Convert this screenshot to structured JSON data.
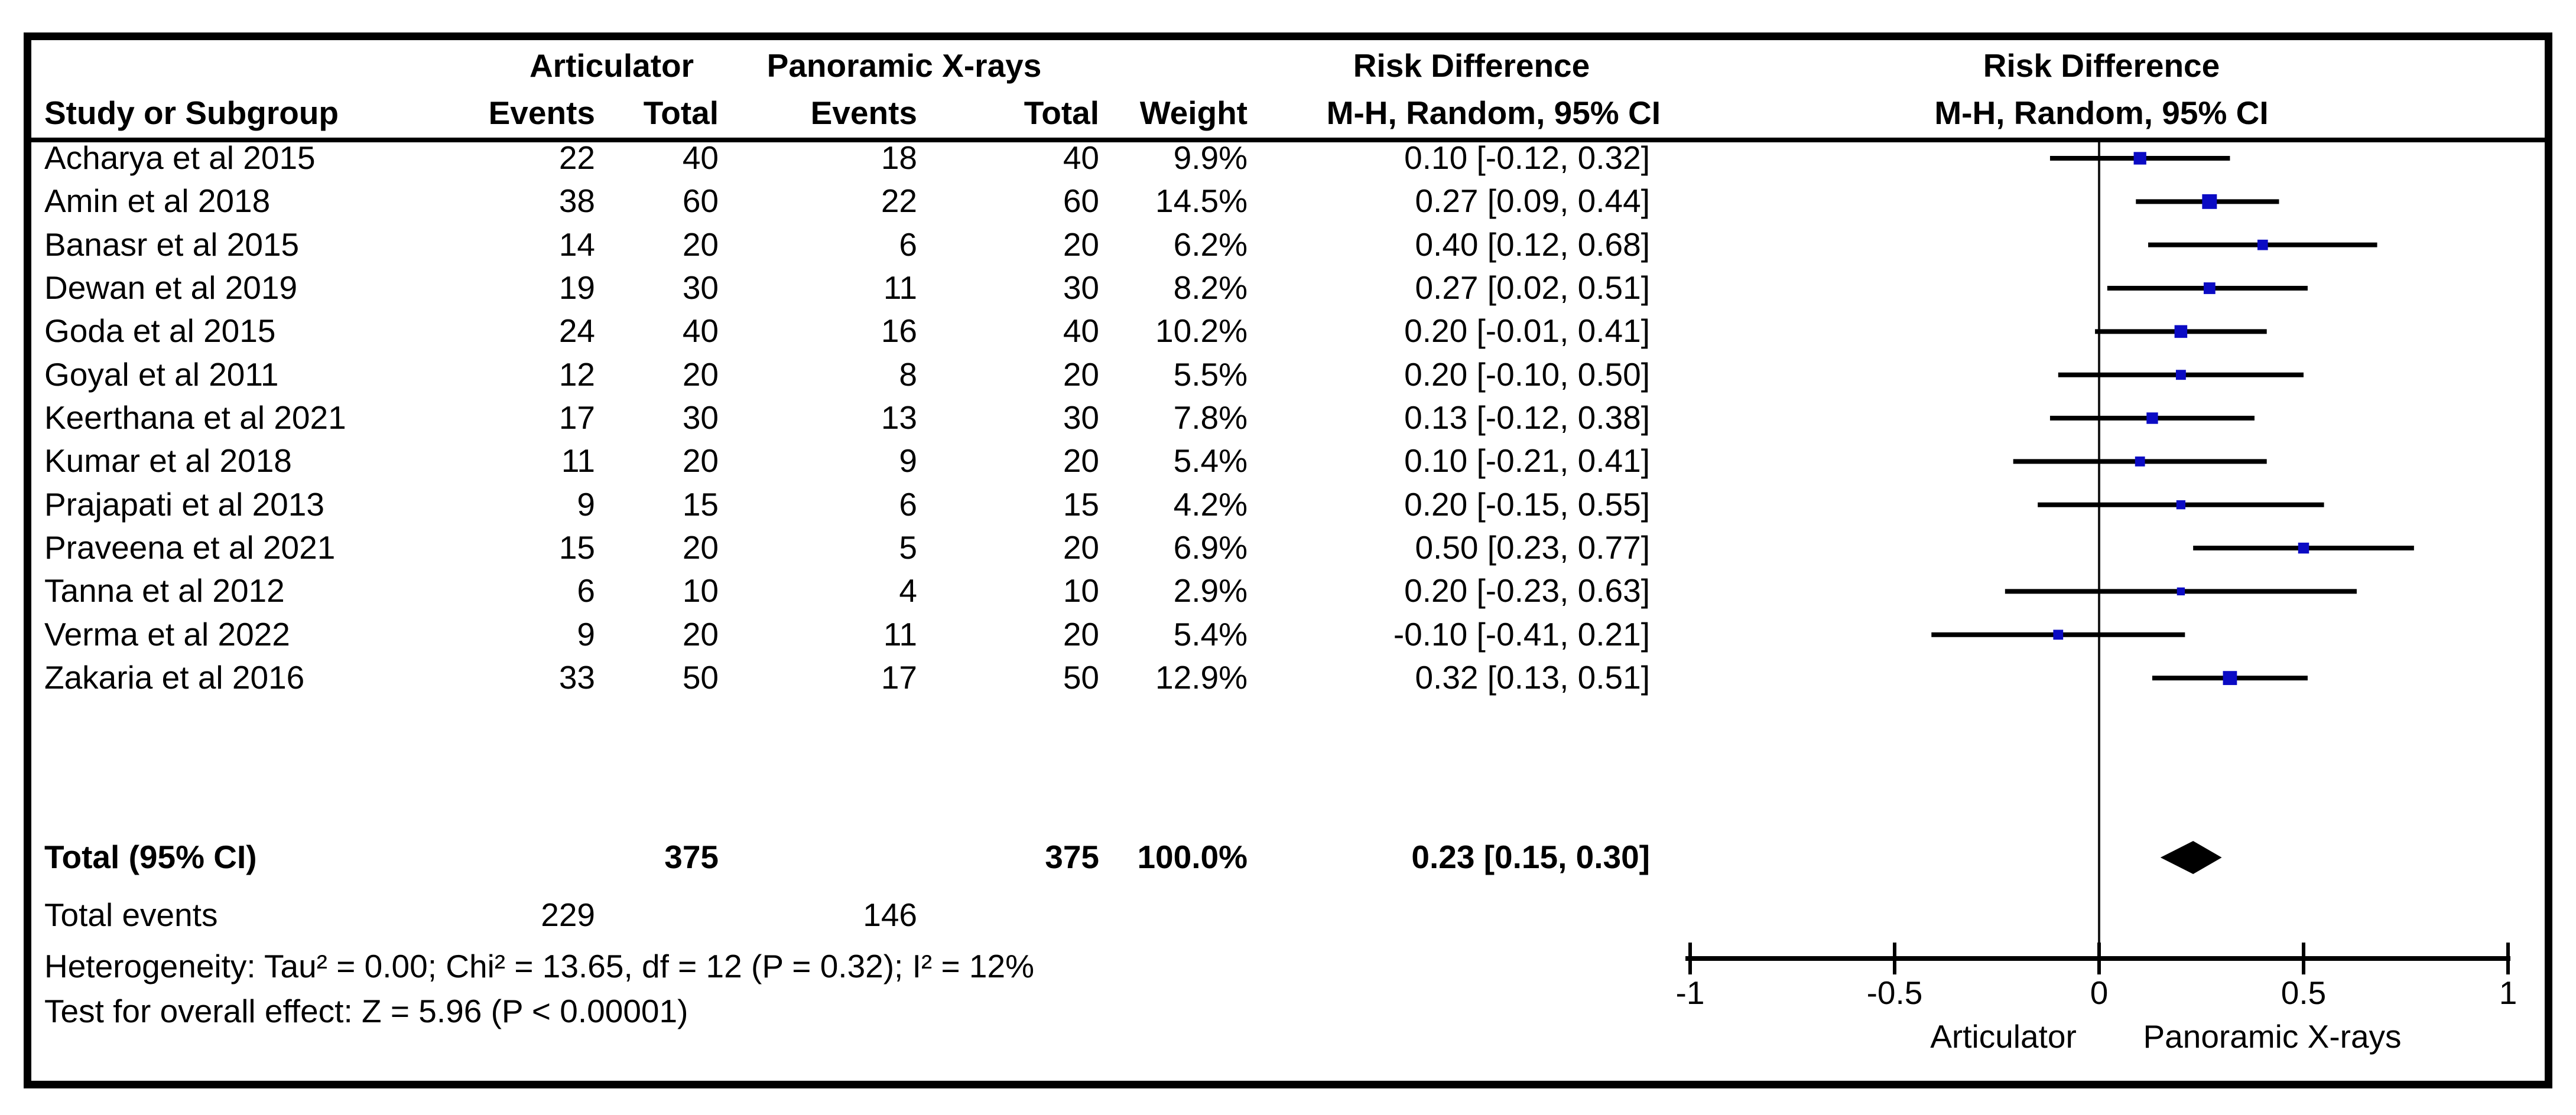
{
  "figure": {
    "kind": "forest-plot",
    "colors": {
      "background": "#ffffff",
      "frame": "#000000",
      "text": "#000000",
      "ci_line": "#000000",
      "marker": "#0b0bc4",
      "diamond": "#000000",
      "zero_line": "#1a1a1a"
    }
  },
  "header": {
    "group1": "Articulator",
    "group2": "Panoramic X-rays",
    "effect_col_title": "Risk Difference",
    "plot_col_title": "Risk Difference",
    "study_col": "Study or Subgroup",
    "events1": "Events",
    "total1": "Total",
    "events2": "Events",
    "total2": "Total",
    "weight": "Weight",
    "effect_col_sub": "M-H, Random, 95% CI",
    "plot_col_sub": "M-H, Random, 95% CI"
  },
  "chart_data": {
    "type": "forest",
    "effect_measure": "Risk Difference",
    "method": "M-H, Random, 95% CI",
    "x_range": [
      -1,
      1
    ],
    "x_ticks": [
      -1,
      -0.5,
      0,
      0.5,
      1
    ],
    "x_tick_labels": [
      "-1",
      "-0.5",
      "0",
      "0.5",
      "1"
    ],
    "favours_left": "Articulator",
    "favours_right": "Panoramic X-rays",
    "grid": false,
    "studies": [
      {
        "name": "Acharya et al 2015",
        "articulator_events": 22,
        "articulator_total": 40,
        "panoramic_events": 18,
        "panoramic_total": 40,
        "weight_label": "9.9%",
        "weight_pct": 9.9,
        "rd": 0.1,
        "ci_low": -0.12,
        "ci_high": 0.32,
        "ci_label": "0.10 [-0.12, 0.32]"
      },
      {
        "name": "Amin et al 2018",
        "articulator_events": 38,
        "articulator_total": 60,
        "panoramic_events": 22,
        "panoramic_total": 60,
        "weight_label": "14.5%",
        "weight_pct": 14.5,
        "rd": 0.27,
        "ci_low": 0.09,
        "ci_high": 0.44,
        "ci_label": "0.27 [0.09, 0.44]"
      },
      {
        "name": "Banasr et al 2015",
        "articulator_events": 14,
        "articulator_total": 20,
        "panoramic_events": 6,
        "panoramic_total": 20,
        "weight_label": "6.2%",
        "weight_pct": 6.2,
        "rd": 0.4,
        "ci_low": 0.12,
        "ci_high": 0.68,
        "ci_label": "0.40 [0.12, 0.68]"
      },
      {
        "name": "Dewan et al 2019",
        "articulator_events": 19,
        "articulator_total": 30,
        "panoramic_events": 11,
        "panoramic_total": 30,
        "weight_label": "8.2%",
        "weight_pct": 8.2,
        "rd": 0.27,
        "ci_low": 0.02,
        "ci_high": 0.51,
        "ci_label": "0.27 [0.02, 0.51]"
      },
      {
        "name": "Goda et al 2015",
        "articulator_events": 24,
        "articulator_total": 40,
        "panoramic_events": 16,
        "panoramic_total": 40,
        "weight_label": "10.2%",
        "weight_pct": 10.2,
        "rd": 0.2,
        "ci_low": -0.01,
        "ci_high": 0.41,
        "ci_label": "0.20 [-0.01, 0.41]"
      },
      {
        "name": "Goyal et al 2011",
        "articulator_events": 12,
        "articulator_total": 20,
        "panoramic_events": 8,
        "panoramic_total": 20,
        "weight_label": "5.5%",
        "weight_pct": 5.5,
        "rd": 0.2,
        "ci_low": -0.1,
        "ci_high": 0.5,
        "ci_label": "0.20 [-0.10, 0.50]"
      },
      {
        "name": "Keerthana et al 2021",
        "articulator_events": 17,
        "articulator_total": 30,
        "panoramic_events": 13,
        "panoramic_total": 30,
        "weight_label": "7.8%",
        "weight_pct": 7.8,
        "rd": 0.13,
        "ci_low": -0.12,
        "ci_high": 0.38,
        "ci_label": "0.13 [-0.12, 0.38]"
      },
      {
        "name": "Kumar et al 2018",
        "articulator_events": 11,
        "articulator_total": 20,
        "panoramic_events": 9,
        "panoramic_total": 20,
        "weight_label": "5.4%",
        "weight_pct": 5.4,
        "rd": 0.1,
        "ci_low": -0.21,
        "ci_high": 0.41,
        "ci_label": "0.10 [-0.21, 0.41]"
      },
      {
        "name": "Prajapati et al 2013",
        "articulator_events": 9,
        "articulator_total": 15,
        "panoramic_events": 6,
        "panoramic_total": 15,
        "weight_label": "4.2%",
        "weight_pct": 4.2,
        "rd": 0.2,
        "ci_low": -0.15,
        "ci_high": 0.55,
        "ci_label": "0.20 [-0.15, 0.55]"
      },
      {
        "name": "Praveena et al 2021",
        "articulator_events": 15,
        "articulator_total": 20,
        "panoramic_events": 5,
        "panoramic_total": 20,
        "weight_label": "6.9%",
        "weight_pct": 6.9,
        "rd": 0.5,
        "ci_low": 0.23,
        "ci_high": 0.77,
        "ci_label": "0.50 [0.23, 0.77]"
      },
      {
        "name": "Tanna et al 2012",
        "articulator_events": 6,
        "articulator_total": 10,
        "panoramic_events": 4,
        "panoramic_total": 10,
        "weight_label": "2.9%",
        "weight_pct": 2.9,
        "rd": 0.2,
        "ci_low": -0.23,
        "ci_high": 0.63,
        "ci_label": "0.20 [-0.23, 0.63]"
      },
      {
        "name": "Verma et al 2022",
        "articulator_events": 9,
        "articulator_total": 20,
        "panoramic_events": 11,
        "panoramic_total": 20,
        "weight_label": "5.4%",
        "weight_pct": 5.4,
        "rd": -0.1,
        "ci_low": -0.41,
        "ci_high": 0.21,
        "ci_label": "-0.10 [-0.41, 0.21]"
      },
      {
        "name": "Zakaria et al 2016",
        "articulator_events": 33,
        "articulator_total": 50,
        "panoramic_events": 17,
        "panoramic_total": 50,
        "weight_label": "12.9%",
        "weight_pct": 12.9,
        "rd": 0.32,
        "ci_low": 0.13,
        "ci_high": 0.51,
        "ci_label": "0.32 [0.13, 0.51]"
      }
    ],
    "total": {
      "label": "Total (95% CI)",
      "articulator_total": 375,
      "panoramic_total": 375,
      "weight_label": "100.0%",
      "rd": 0.23,
      "ci_low": 0.15,
      "ci_high": 0.3,
      "ci_label": "0.23 [0.15, 0.30]"
    },
    "total_events": {
      "label": "Total events",
      "articulator": 229,
      "panoramic": 146
    },
    "heterogeneity": "Heterogeneity: Tau² = 0.00; Chi² = 13.65, df = 12 (P = 0.32); I² = 12%",
    "overall_effect": "Test for overall effect: Z = 5.96 (P < 0.00001)"
  }
}
